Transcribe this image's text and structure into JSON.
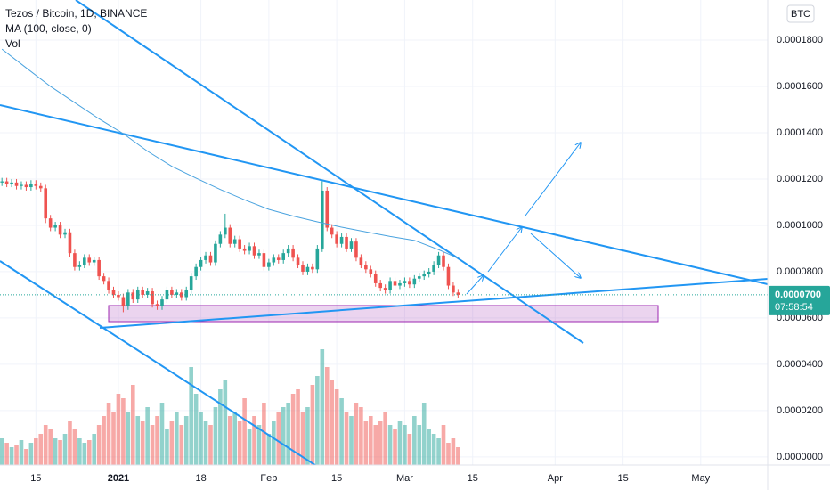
{
  "chart_data": {
    "type": "candlestick",
    "title": "Tezos / Bitcoin, 1D, BINANCE",
    "currency": "BTC",
    "up_color": "#26a69a",
    "down_color": "#ef5350",
    "x": [
      0,
      1,
      2,
      3,
      4,
      5,
      6,
      7,
      8,
      9,
      10,
      11,
      12,
      13,
      14,
      15,
      16,
      17,
      18,
      19,
      20,
      21,
      22,
      23,
      24,
      25,
      26,
      27,
      28,
      29,
      30,
      31,
      32,
      33,
      34,
      35,
      36,
      37,
      38,
      39,
      40,
      41,
      42,
      43,
      44,
      45,
      46,
      47,
      48,
      49,
      50,
      51,
      52,
      53,
      54,
      55,
      56,
      57,
      58,
      59,
      60,
      61,
      62,
      63,
      64,
      65,
      66,
      67,
      68,
      69,
      70,
      71,
      72,
      73,
      74,
      75,
      76,
      77,
      78,
      79,
      80,
      81,
      82,
      83,
      84,
      85,
      86,
      87,
      88,
      89,
      90,
      91,
      92,
      93,
      94
    ],
    "open": [
      0.0001185,
      0.000119,
      0.000118,
      0.0001185,
      0.000117,
      0.0001175,
      0.0001165,
      0.000118,
      0.000117,
      0.000116,
      0.000103,
      9.9e-05,
      0.0001,
      9.6e-05,
      9.7e-05,
      8.8e-05,
      8.2e-05,
      8.3e-05,
      8.6e-05,
      8.4e-05,
      8.5e-05,
      7.8e-05,
      7.6e-05,
      7.2e-05,
      7e-05,
      6.9e-05,
      6.5e-05,
      7.1e-05,
      6.8e-05,
      7.2e-05,
      7e-05,
      7.15e-05,
      6.6e-05,
      6.5e-05,
      6.8e-05,
      7.2e-05,
      7e-05,
      7.1e-05,
      6.9e-05,
      7.2e-05,
      7.8e-05,
      8.2e-05,
      8.5e-05,
      8.7e-05,
      8.4e-05,
      9.2e-05,
      9.6e-05,
      9.9e-05,
      9.2e-05,
      9.4e-05,
      9e-05,
      8.9e-05,
      9.1e-05,
      8.7e-05,
      8.8e-05,
      8.2e-05,
      8.4e-05,
      8.6e-05,
      8.5e-05,
      8.8e-05,
      9e-05,
      8.6e-05,
      8.3e-05,
      8e-05,
      8.2e-05,
      8.1e-05,
      9e-05,
      0.000115,
      9.9e-05,
      9.6e-05,
      9.2e-05,
      9.5e-05,
      9e-05,
      9.3e-05,
      8.6e-05,
      8.3e-05,
      8.1e-05,
      7.9e-05,
      7.5e-05,
      7.3e-05,
      7.2e-05,
      7.6e-05,
      7.4e-05,
      7.5e-05,
      7.6e-05,
      7.45e-05,
      7.7e-05,
      7.8e-05,
      7.9e-05,
      8e-05,
      8.3e-05,
      8.7e-05,
      8.2e-05,
      7.4e-05,
      7.1e-05
    ],
    "high": [
      0.0001205,
      0.0001205,
      0.00012,
      0.00012,
      0.000119,
      0.000119,
      0.0001195,
      0.0001195,
      0.0001185,
      0.0001175,
      0.0001045,
      0.0001015,
      0.0001015,
      9.85e-05,
      9.85e-05,
      8.95e-05,
      8.45e-05,
      8.75e-05,
      8.75e-05,
      8.65e-05,
      8.65e-05,
      7.95e-05,
      7.75e-05,
      7.35e-05,
      7.15e-05,
      7.05e-05,
      7.25e-05,
      7.25e-05,
      7.35e-05,
      7.35e-05,
      7.3e-05,
      7.3e-05,
      6.75e-05,
      6.95e-05,
      7.35e-05,
      7.35e-05,
      7.25e-05,
      7.25e-05,
      7.35e-05,
      7.95e-05,
      8.35e-05,
      8.65e-05,
      8.85e-05,
      8.85e-05,
      9.35e-05,
      9.75e-05,
      0.000105,
      0.0001005,
      9.55e-05,
      9.55e-05,
      9.15e-05,
      9.25e-05,
      9.25e-05,
      8.95e-05,
      8.95e-05,
      8.55e-05,
      8.75e-05,
      8.75e-05,
      8.95e-05,
      9.15e-05,
      9.15e-05,
      8.75e-05,
      8.45e-05,
      8.35e-05,
      8.35e-05,
      9.15e-05,
      0.000119,
      0.0001165,
      0.0001005,
      9.75e-05,
      9.65e-05,
      9.65e-05,
      9.45e-05,
      9.45e-05,
      8.75e-05,
      8.45e-05,
      8.25e-05,
      8.05e-05,
      7.65e-05,
      7.45e-05,
      7.75e-05,
      7.75e-05,
      7.65e-05,
      7.75e-05,
      7.75e-05,
      7.85e-05,
      7.95e-05,
      8.05e-05,
      8.15e-05,
      8.45e-05,
      8.85e-05,
      8.85e-05,
      8.35e-05,
      7.55e-05,
      7.25e-05
    ],
    "low": [
      0.000117,
      0.0001165,
      0.0001165,
      0.0001155,
      0.0001155,
      0.000115,
      0.000115,
      0.0001155,
      0.0001145,
      0.000101,
      9.75e-05,
      9.75e-05,
      9.45e-05,
      9.45e-05,
      8.65e-05,
      8.05e-05,
      8.05e-05,
      8.15e-05,
      8.25e-05,
      8.25e-05,
      7.65e-05,
      7.45e-05,
      7.05e-05,
      6.85e-05,
      6.75e-05,
      6.25e-05,
      6.35e-05,
      6.65e-05,
      6.65e-05,
      6.85e-05,
      6.85e-05,
      6.45e-05,
      6.35e-05,
      6.35e-05,
      6.65e-05,
      6.85e-05,
      6.85e-05,
      6.75e-05,
      6.75e-05,
      7.05e-05,
      7.65e-05,
      8.05e-05,
      8.35e-05,
      8.25e-05,
      8.25e-05,
      9.05e-05,
      9.45e-05,
      9.05e-05,
      9.05e-05,
      8.85e-05,
      8.75e-05,
      8.75e-05,
      8.55e-05,
      8.55e-05,
      8.05e-05,
      8.05e-05,
      8.25e-05,
      8.35e-05,
      8.35e-05,
      8.65e-05,
      8.45e-05,
      8.15e-05,
      7.85e-05,
      7.85e-05,
      7.95e-05,
      7.95e-05,
      8.85e-05,
      9.75e-05,
      9.45e-05,
      9.05e-05,
      9.05e-05,
      8.85e-05,
      8.85e-05,
      8.45e-05,
      8.15e-05,
      7.95e-05,
      7.75e-05,
      7.35e-05,
      7.15e-05,
      7.05e-05,
      7.05e-05,
      7.25e-05,
      7.25e-05,
      7.35e-05,
      7.3e-05,
      7.3e-05,
      7.55e-05,
      7.65e-05,
      7.75e-05,
      7.85e-05,
      8.15e-05,
      8.05e-05,
      7.25e-05,
      6.95e-05,
      6.85e-05
    ],
    "close": [
      0.000119,
      0.000118,
      0.0001185,
      0.000117,
      0.0001175,
      0.0001165,
      0.000118,
      0.000117,
      0.000116,
      0.000103,
      9.9e-05,
      0.0001,
      9.6e-05,
      9.7e-05,
      8.8e-05,
      8.2e-05,
      8.3e-05,
      8.6e-05,
      8.4e-05,
      8.5e-05,
      7.8e-05,
      7.6e-05,
      7.2e-05,
      7e-05,
      6.9e-05,
      6.5e-05,
      7.1e-05,
      6.8e-05,
      7.2e-05,
      7e-05,
      7.15e-05,
      6.6e-05,
      6.5e-05,
      6.8e-05,
      7.2e-05,
      7e-05,
      7.1e-05,
      6.9e-05,
      7.2e-05,
      7.8e-05,
      8.2e-05,
      8.5e-05,
      8.7e-05,
      8.4e-05,
      9.2e-05,
      9.6e-05,
      9.9e-05,
      9.2e-05,
      9.4e-05,
      9e-05,
      8.9e-05,
      9.1e-05,
      8.7e-05,
      8.8e-05,
      8.2e-05,
      8.4e-05,
      8.6e-05,
      8.5e-05,
      8.8e-05,
      9e-05,
      8.6e-05,
      8.3e-05,
      8e-05,
      8.2e-05,
      8.1e-05,
      9e-05,
      0.000115,
      9.9e-05,
      9.6e-05,
      9.2e-05,
      9.5e-05,
      9e-05,
      9.3e-05,
      8.6e-05,
      8.3e-05,
      8.1e-05,
      7.9e-05,
      7.5e-05,
      7.3e-05,
      7.2e-05,
      7.6e-05,
      7.4e-05,
      7.5e-05,
      7.6e-05,
      7.45e-05,
      7.7e-05,
      7.8e-05,
      7.9e-05,
      8e-05,
      8.3e-05,
      8.7e-05,
      8.2e-05,
      7.4e-05,
      7.1e-05,
      7e-05
    ],
    "volume_name": "Vol",
    "volume": [
      30,
      25,
      20,
      22,
      28,
      18,
      25,
      30,
      35,
      45,
      40,
      30,
      28,
      35,
      50,
      40,
      30,
      25,
      28,
      35,
      45,
      55,
      70,
      60,
      80,
      75,
      60,
      90,
      55,
      50,
      65,
      45,
      55,
      70,
      40,
      50,
      60,
      45,
      55,
      110,
      80,
      60,
      50,
      45,
      65,
      85,
      95,
      55,
      60,
      50,
      75,
      40,
      55,
      45,
      70,
      35,
      50,
      60,
      65,
      70,
      80,
      85,
      60,
      65,
      90,
      100,
      130,
      110,
      95,
      85,
      75,
      60,
      55,
      70,
      65,
      50,
      55,
      45,
      50,
      60,
      45,
      40,
      50,
      45,
      35,
      55,
      45,
      70,
      40,
      35,
      30,
      45,
      25,
      30,
      20
    ],
    "volume_lim": [
      0,
      150
    ],
    "ma": {
      "name": "MA (100, close, 0)",
      "color": "#4aa3df",
      "x": [
        0,
        5,
        10,
        15,
        20,
        25,
        30,
        35,
        40,
        45,
        50,
        55,
        60,
        65,
        70,
        75,
        80,
        85,
        90,
        94
      ],
      "values": [
        0.0001761,
        0.000168,
        0.00016,
        0.000153,
        0.000146,
        0.0001396,
        0.000132,
        0.0001255,
        0.0001204,
        0.0001155,
        0.000111,
        0.0001069,
        0.000104,
        0.0001015,
        9.92e-05,
        9.72e-05,
        9.52e-05,
        9.35e-05,
        8.95e-05,
        8.58e-05
      ]
    },
    "last_price": {
      "value": 7e-05,
      "label": "0.0000700"
    },
    "countdown": "07:58:54",
    "xlim": [
      -0.4,
      157.8
    ],
    "ylim": [
      -3.5e-06,
      0.0001973
    ],
    "yticks": [
      {
        "value": 0,
        "label": "0.0000000"
      },
      {
        "value": 2e-05,
        "label": "0.0000200"
      },
      {
        "value": 4e-05,
        "label": "0.0000400"
      },
      {
        "value": 6e-05,
        "label": "0.0000600"
      },
      {
        "value": 8e-05,
        "label": "0.0000800"
      },
      {
        "value": 0.0001,
        "label": "0.0001000"
      },
      {
        "value": 0.00012,
        "label": "0.0001200"
      },
      {
        "value": 0.00014,
        "label": "0.0001400"
      },
      {
        "value": 0.00016,
        "label": "0.0001600"
      },
      {
        "value": 0.00018,
        "label": "0.0001800"
      }
    ],
    "xticks": [
      {
        "value": 7,
        "label": "15"
      },
      {
        "value": 24,
        "label": "2021"
      },
      {
        "value": 41,
        "label": "18"
      },
      {
        "value": 55,
        "label": "Feb"
      },
      {
        "value": 69,
        "label": "15"
      },
      {
        "value": 83,
        "label": "Mar"
      },
      {
        "value": 97,
        "label": "15"
      },
      {
        "value": 114,
        "label": "Apr"
      },
      {
        "value": 128,
        "label": "15"
      },
      {
        "value": 144,
        "label": "May"
      }
    ],
    "grid": true
  }
}
